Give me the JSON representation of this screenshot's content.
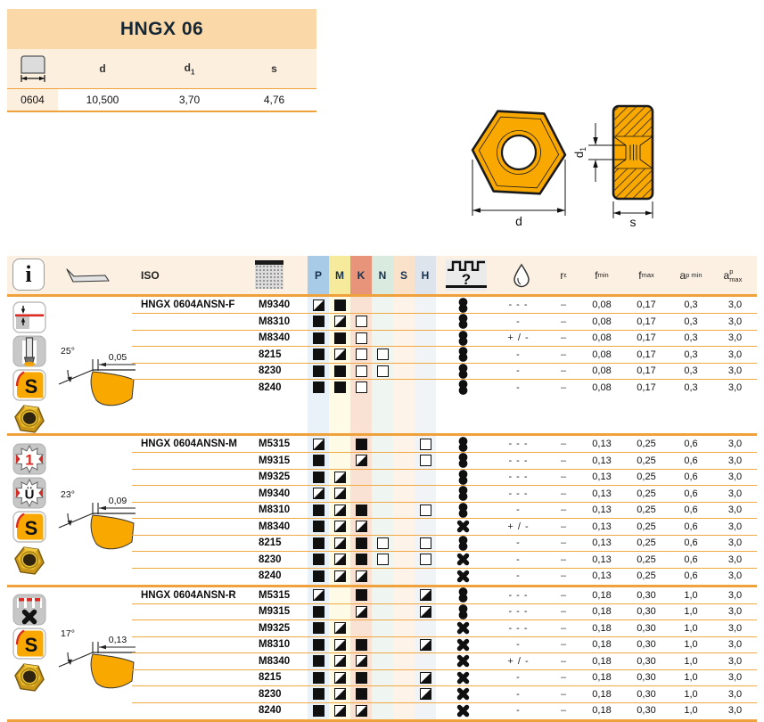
{
  "colors": {
    "accent_orange": "#EFA23B",
    "title_bg": "#FAD8A8",
    "subhead_bg": "#FCEFDE",
    "insert_orange": "#F9A800",
    "mark_black": "#101010"
  },
  "top_table": {
    "title": "HNGX 06",
    "headers": {
      "d": "d",
      "d1_base": "d",
      "d1_sub": "1",
      "s": "s"
    },
    "row": {
      "size": "0604",
      "d": "10,500",
      "d1": "3,70",
      "s": "4,76"
    }
  },
  "drawings": {
    "front_dim_label": "d",
    "side_dim_label": "s",
    "hole_dim_base": "d",
    "hole_dim_sub": "1"
  },
  "table": {
    "info_label": "i",
    "iso_label": "ISO",
    "cond_question": "?",
    "re_label": {
      "base": "r",
      "sub": "ε"
    },
    "fmin_label": {
      "base": "f",
      "sub": "min"
    },
    "fmax_label": {
      "base": "f",
      "sub": "max"
    },
    "apmin_label": {
      "base": "a",
      "sub": "p min"
    },
    "apmax_label": {
      "base": "a",
      "sub": "p max"
    },
    "iso_groups": [
      {
        "letter": "P",
        "header_color": "#A8CBE8",
        "body_color": "#E9F1F9"
      },
      {
        "letter": "M",
        "header_color": "#F6EA9C",
        "body_color": "#FDFAE6"
      },
      {
        "letter": "K",
        "header_color": "#E8947B",
        "body_color": "#F9E1D4"
      },
      {
        "letter": "N",
        "header_color": "#D9EBDF",
        "body_color": "#EFF6F1"
      },
      {
        "letter": "S",
        "header_color": "#F9E2C9",
        "body_color": "#FDF3E8"
      },
      {
        "letter": "H",
        "header_color": "#DDE4EC",
        "body_color": "#F0F4F7"
      }
    ],
    "groups": [
      {
        "designation": "HNGX 0604ANSN-F",
        "angle": "25°",
        "land": "0,05",
        "icons": [
          "wiper-finishing-icon",
          "plunge-milling-icon",
          "s-operation-icon",
          "insert-photo"
        ],
        "rows": [
          {
            "grade": "M9340",
            "marks": [
              "half",
              "full",
              "",
              "",
              "",
              ""
            ],
            "cond": "smooth",
            "coolant": "- - -",
            "re": "–",
            "fmin": "0,08",
            "fmax": "0,17",
            "apmin": "0,3",
            "apmax": "3,0"
          },
          {
            "grade": "M8310",
            "marks": [
              "full",
              "half",
              "empty",
              "",
              "",
              ""
            ],
            "cond": "smooth",
            "coolant": "-",
            "re": "–",
            "fmin": "0,08",
            "fmax": "0,17",
            "apmin": "0,3",
            "apmax": "3,0"
          },
          {
            "grade": "M8340",
            "marks": [
              "full",
              "full",
              "empty",
              "",
              "",
              ""
            ],
            "cond": "smooth",
            "coolant": "+ / -",
            "re": "–",
            "fmin": "0,08",
            "fmax": "0,17",
            "apmin": "0,3",
            "apmax": "3,0"
          },
          {
            "grade": "8215",
            "marks": [
              "full",
              "half",
              "empty",
              "empty",
              "",
              ""
            ],
            "cond": "smooth",
            "coolant": "-",
            "re": "–",
            "fmin": "0,08",
            "fmax": "0,17",
            "apmin": "0,3",
            "apmax": "3,0"
          },
          {
            "grade": "8230",
            "marks": [
              "full",
              "full",
              "empty",
              "empty",
              "",
              ""
            ],
            "cond": "smooth",
            "coolant": "-",
            "re": "–",
            "fmin": "0,08",
            "fmax": "0,17",
            "apmin": "0,3",
            "apmax": "3,0"
          },
          {
            "grade": "8240",
            "marks": [
              "full",
              "full",
              "empty",
              "",
              "",
              ""
            ],
            "cond": "smooth",
            "coolant": "-",
            "re": "–",
            "fmin": "0,08",
            "fmax": "0,17",
            "apmin": "0,3",
            "apmax": "3,0"
          }
        ]
      },
      {
        "designation": "HNGX 0604ANSN-M",
        "angle": "23°",
        "land": "0,09",
        "icons": [
          "first-choice-star-icon",
          "universal-star-icon",
          "s-operation-icon",
          "insert-photo"
        ],
        "rows": [
          {
            "grade": "M5315",
            "marks": [
              "half",
              "",
              "full",
              "",
              "",
              "empty"
            ],
            "cond": "smooth",
            "coolant": "- - -",
            "re": "–",
            "fmin": "0,13",
            "fmax": "0,25",
            "apmin": "0,6",
            "apmax": "3,0"
          },
          {
            "grade": "M9315",
            "marks": [
              "full",
              "",
              "half",
              "",
              "",
              "empty"
            ],
            "cond": "smooth",
            "coolant": "- - -",
            "re": "–",
            "fmin": "0,13",
            "fmax": "0,25",
            "apmin": "0,6",
            "apmax": "3,0"
          },
          {
            "grade": "M9325",
            "marks": [
              "full",
              "half",
              "",
              "",
              "",
              ""
            ],
            "cond": "smooth",
            "coolant": "- - -",
            "re": "–",
            "fmin": "0,13",
            "fmax": "0,25",
            "apmin": "0,6",
            "apmax": "3,0"
          },
          {
            "grade": "M9340",
            "marks": [
              "half",
              "half",
              "",
              "",
              "",
              ""
            ],
            "cond": "smooth",
            "coolant": "- - -",
            "re": "–",
            "fmin": "0,13",
            "fmax": "0,25",
            "apmin": "0,6",
            "apmax": "3,0"
          },
          {
            "grade": "M8310",
            "marks": [
              "full",
              "half",
              "full",
              "",
              "",
              "empty"
            ],
            "cond": "smooth",
            "coolant": "-",
            "re": "–",
            "fmin": "0,13",
            "fmax": "0,25",
            "apmin": "0,6",
            "apmax": "3,0"
          },
          {
            "grade": "M8340",
            "marks": [
              "full",
              "half",
              "half",
              "",
              "",
              ""
            ],
            "cond": "interrupted",
            "coolant": "+ / -",
            "re": "–",
            "fmin": "0,13",
            "fmax": "0,25",
            "apmin": "0,6",
            "apmax": "3,0"
          },
          {
            "grade": "8215",
            "marks": [
              "full",
              "half",
              "full",
              "empty",
              "",
              "empty"
            ],
            "cond": "smooth",
            "coolant": "-",
            "re": "–",
            "fmin": "0,13",
            "fmax": "0,25",
            "apmin": "0,6",
            "apmax": "3,0"
          },
          {
            "grade": "8230",
            "marks": [
              "full",
              "half",
              "full",
              "empty",
              "",
              "empty"
            ],
            "cond": "interrupted",
            "coolant": "-",
            "re": "–",
            "fmin": "0,13",
            "fmax": "0,25",
            "apmin": "0,6",
            "apmax": "3,0"
          },
          {
            "grade": "8240",
            "marks": [
              "full",
              "half",
              "half",
              "",
              "",
              ""
            ],
            "cond": "interrupted",
            "coolant": "-",
            "re": "–",
            "fmin": "0,13",
            "fmax": "0,25",
            "apmin": "0,6",
            "apmax": "3,0"
          }
        ]
      },
      {
        "designation": "HNGX 0604ANSN-R",
        "angle": "17°",
        "land": "0,13",
        "icons": [
          "interrupted-cut-icon",
          "s-operation-icon",
          "insert-photo"
        ],
        "rows": [
          {
            "grade": "M5315",
            "marks": [
              "half",
              "",
              "full",
              "",
              "",
              "half"
            ],
            "cond": "smooth",
            "coolant": "- - -",
            "re": "–",
            "fmin": "0,18",
            "fmax": "0,30",
            "apmin": "1,0",
            "apmax": "3,0"
          },
          {
            "grade": "M9315",
            "marks": [
              "full",
              "",
              "half",
              "",
              "",
              "half"
            ],
            "cond": "smooth",
            "coolant": "- - -",
            "re": "–",
            "fmin": "0,18",
            "fmax": "0,30",
            "apmin": "1,0",
            "apmax": "3,0"
          },
          {
            "grade": "M9325",
            "marks": [
              "full",
              "half",
              "",
              "",
              "",
              ""
            ],
            "cond": "interrupted",
            "coolant": "- - -",
            "re": "–",
            "fmin": "0,18",
            "fmax": "0,30",
            "apmin": "1,0",
            "apmax": "3,0"
          },
          {
            "grade": "M8310",
            "marks": [
              "full",
              "half",
              "full",
              "",
              "",
              "half"
            ],
            "cond": "interrupted",
            "coolant": "-",
            "re": "–",
            "fmin": "0,18",
            "fmax": "0,30",
            "apmin": "1,0",
            "apmax": "3,0"
          },
          {
            "grade": "M8340",
            "marks": [
              "full",
              "half",
              "half",
              "",
              "",
              ""
            ],
            "cond": "interrupted",
            "coolant": "+ / -",
            "re": "–",
            "fmin": "0,18",
            "fmax": "0,30",
            "apmin": "1,0",
            "apmax": "3,0"
          },
          {
            "grade": "8215",
            "marks": [
              "full",
              "half",
              "full",
              "",
              "",
              "half"
            ],
            "cond": "interrupted",
            "coolant": "-",
            "re": "–",
            "fmin": "0,18",
            "fmax": "0,30",
            "apmin": "1,0",
            "apmax": "3,0"
          },
          {
            "grade": "8230",
            "marks": [
              "full",
              "half",
              "full",
              "",
              "",
              "half"
            ],
            "cond": "interrupted",
            "coolant": "-",
            "re": "–",
            "fmin": "0,18",
            "fmax": "0,30",
            "apmin": "1,0",
            "apmax": "3,0"
          },
          {
            "grade": "8240",
            "marks": [
              "full",
              "half",
              "half",
              "",
              "",
              ""
            ],
            "cond": "interrupted",
            "coolant": "-",
            "re": "–",
            "fmin": "0,18",
            "fmax": "0,30",
            "apmin": "1,0",
            "apmax": "3,0"
          }
        ]
      }
    ]
  }
}
